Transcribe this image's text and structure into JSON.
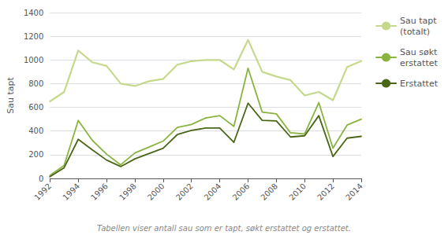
{
  "chart_data": {
    "type": "line",
    "x": [
      1992,
      1993,
      1994,
      1995,
      1996,
      1997,
      1998,
      1999,
      2000,
      2001,
      2002,
      2003,
      2004,
      2005,
      2006,
      2007,
      2008,
      2009,
      2010,
      2011,
      2012,
      2013,
      2014
    ],
    "series": [
      {
        "name": "Sau tapt\n(totalt)",
        "color": "#c5d98c",
        "values": [
          650,
          730,
          1080,
          980,
          950,
          800,
          780,
          820,
          840,
          960,
          990,
          1000,
          1000,
          920,
          1170,
          900,
          860,
          830,
          700,
          730,
          660,
          940,
          990
        ]
      },
      {
        "name": "Sau søkt\nerstattet",
        "color": "#8ab33f",
        "values": [
          25,
          110,
          490,
          320,
          205,
          115,
          215,
          265,
          315,
          430,
          455,
          510,
          530,
          440,
          930,
          560,
          545,
          385,
          375,
          640,
          255,
          450,
          500
        ]
      },
      {
        "name": "Erstattet",
        "color": "#4a6617",
        "values": [
          15,
          90,
          330,
          240,
          155,
          100,
          165,
          210,
          255,
          370,
          405,
          425,
          425,
          305,
          635,
          490,
          485,
          350,
          360,
          530,
          185,
          340,
          355
        ]
      }
    ],
    "xlim": [
      1992,
      2014
    ],
    "xticks": [
      1992,
      1994,
      1996,
      1998,
      2000,
      2002,
      2004,
      2006,
      2008,
      2010,
      2012,
      2014
    ],
    "ylabel": "Sau tapt",
    "ylim": [
      0,
      1400
    ],
    "yticks": [
      0,
      200,
      400,
      600,
      800,
      1000,
      1200,
      1400
    ],
    "grid": true,
    "legend": "right",
    "annotations": [
      "Tabellen viser antall sau som er tapt, søkt erstattet og erstattet."
    ]
  }
}
